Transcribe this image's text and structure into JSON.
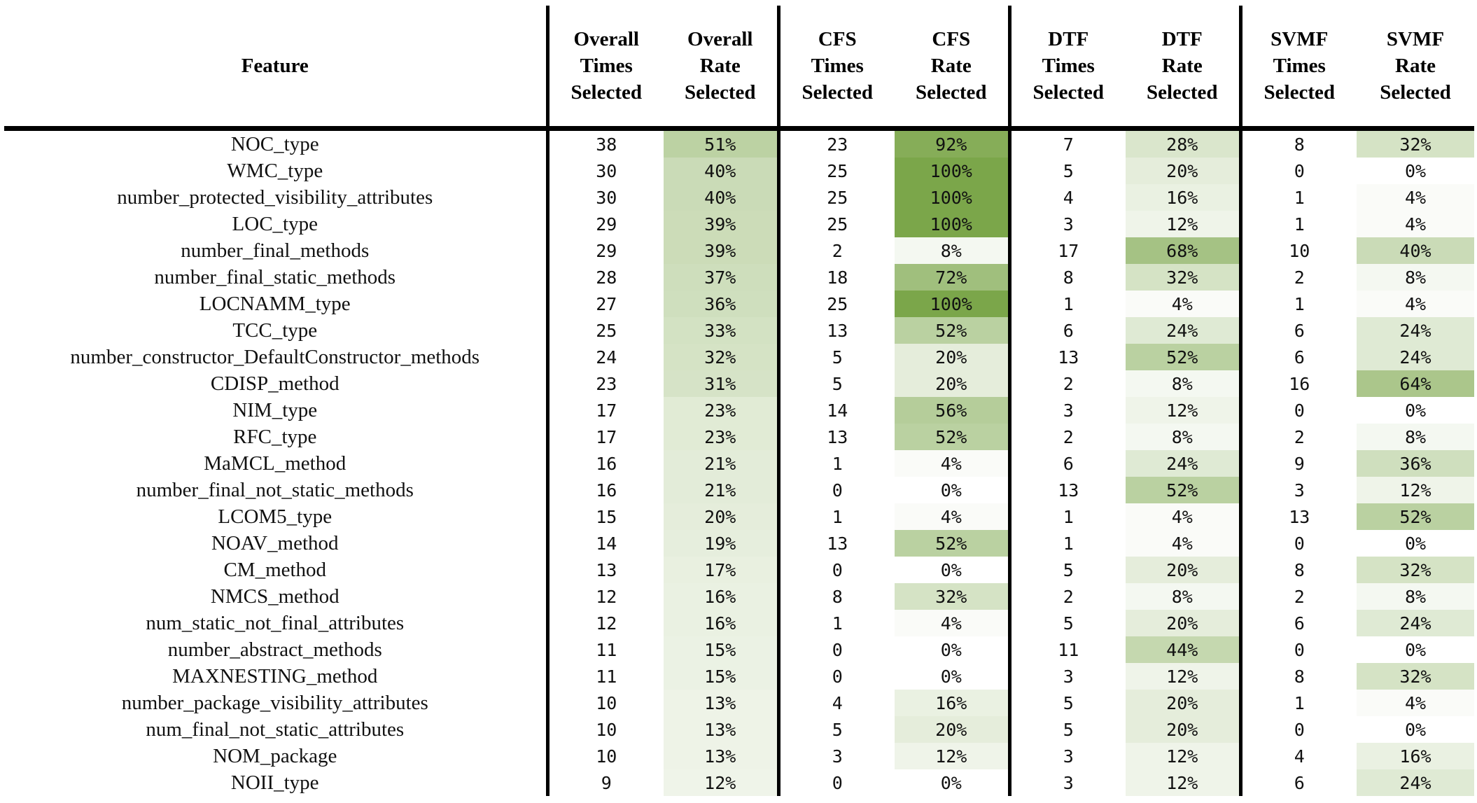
{
  "header": {
    "feature": "Feature",
    "groups": [
      {
        "times": [
          "Overall",
          "Times",
          "Selected"
        ],
        "rate": [
          "Overall",
          "Rate",
          "Selected"
        ]
      },
      {
        "times": [
          "CFS",
          "Times",
          "Selected"
        ],
        "rate": [
          "CFS",
          "Rate",
          "Selected"
        ]
      },
      {
        "times": [
          "DTF",
          "Times",
          "Selected"
        ],
        "rate": [
          "DTF",
          "Rate",
          "Selected"
        ]
      },
      {
        "times": [
          "SVMF",
          "Times",
          "Selected"
        ],
        "rate": [
          "SVMF",
          "Rate",
          "Selected"
        ]
      }
    ]
  },
  "rows": [
    {
      "feature": "NOC_type",
      "values": [
        38,
        51,
        23,
        92,
        7,
        28,
        8,
        32
      ]
    },
    {
      "feature": "WMC_type",
      "values": [
        30,
        40,
        25,
        100,
        5,
        20,
        0,
        0
      ]
    },
    {
      "feature": "number_protected_visibility_attributes",
      "values": [
        30,
        40,
        25,
        100,
        4,
        16,
        1,
        4
      ]
    },
    {
      "feature": "LOC_type",
      "values": [
        29,
        39,
        25,
        100,
        3,
        12,
        1,
        4
      ]
    },
    {
      "feature": "number_final_methods",
      "values": [
        29,
        39,
        2,
        8,
        17,
        68,
        10,
        40
      ]
    },
    {
      "feature": "number_final_static_methods",
      "values": [
        28,
        37,
        18,
        72,
        8,
        32,
        2,
        8
      ]
    },
    {
      "feature": "LOCNAMM_type",
      "values": [
        27,
        36,
        25,
        100,
        1,
        4,
        1,
        4
      ]
    },
    {
      "feature": "TCC_type",
      "values": [
        25,
        33,
        13,
        52,
        6,
        24,
        6,
        24
      ]
    },
    {
      "feature": "number_constructor_DefaultConstructor_methods",
      "values": [
        24,
        32,
        5,
        20,
        13,
        52,
        6,
        24
      ]
    },
    {
      "feature": "CDISP_method",
      "values": [
        23,
        31,
        5,
        20,
        2,
        8,
        16,
        64
      ]
    },
    {
      "feature": "NIM_type",
      "values": [
        17,
        23,
        14,
        56,
        3,
        12,
        0,
        0
      ]
    },
    {
      "feature": "RFC_type",
      "values": [
        17,
        23,
        13,
        52,
        2,
        8,
        2,
        8
      ]
    },
    {
      "feature": "MaMCL_method",
      "values": [
        16,
        21,
        1,
        4,
        6,
        24,
        9,
        36
      ]
    },
    {
      "feature": "number_final_not_static_methods",
      "values": [
        16,
        21,
        0,
        0,
        13,
        52,
        3,
        12
      ]
    },
    {
      "feature": "LCOM5_type",
      "values": [
        15,
        20,
        1,
        4,
        1,
        4,
        13,
        52
      ]
    },
    {
      "feature": "NOAV_method",
      "values": [
        14,
        19,
        13,
        52,
        1,
        4,
        0,
        0
      ]
    },
    {
      "feature": "CM_method",
      "values": [
        13,
        17,
        0,
        0,
        5,
        20,
        8,
        32
      ]
    },
    {
      "feature": "NMCS_method",
      "values": [
        12,
        16,
        8,
        32,
        2,
        8,
        2,
        8
      ]
    },
    {
      "feature": "num_static_not_final_attributes",
      "values": [
        12,
        16,
        1,
        4,
        5,
        20,
        6,
        24
      ]
    },
    {
      "feature": "number_abstract_methods",
      "values": [
        11,
        15,
        0,
        0,
        11,
        44,
        0,
        0
      ]
    },
    {
      "feature": "MAXNESTING_method",
      "values": [
        11,
        15,
        0,
        0,
        3,
        12,
        8,
        32
      ]
    },
    {
      "feature": "number_package_visibility_attributes",
      "values": [
        10,
        13,
        4,
        16,
        5,
        20,
        1,
        4
      ]
    },
    {
      "feature": "num_final_not_static_attributes",
      "values": [
        10,
        13,
        5,
        20,
        5,
        20,
        0,
        0
      ]
    },
    {
      "feature": "NOM_package",
      "values": [
        10,
        13,
        3,
        12,
        3,
        12,
        4,
        16
      ]
    },
    {
      "feature": "NOII_type",
      "values": [
        9,
        12,
        0,
        0,
        3,
        12,
        6,
        24
      ]
    }
  ],
  "rate_suffix": "%",
  "heat_colors": {
    "low": "#ffffff",
    "high": "#7ba64a"
  }
}
